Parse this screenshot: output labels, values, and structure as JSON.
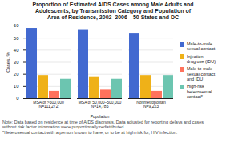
{
  "chart_data": {
    "type": "bar",
    "title": "Proportion of Estimated AIDS Cases among Male Adults and\nAdolescents, by Transmission Category and Population of\nArea of Residence, 2002–2006—50 States and DC",
    "xlabel": "Population",
    "ylabel": "Cases, %",
    "categories": [
      "MSA of >500,000\nN=111,272",
      "MSA of 50,000–500,000\nN=14,785",
      "Nonmetropolitan\nN=9,223"
    ],
    "series": [
      {
        "name": "Male-to-male\nsexual contact",
        "values": [
          58,
          57,
          54
        ]
      },
      {
        "name": "Injection\ndrug use (IDU)",
        "values": [
          19,
          18,
          19
        ]
      },
      {
        "name": "Male-to-male\nsexual contact\nand IDU",
        "values": [
          6,
          7,
          6
        ]
      },
      {
        "name": "High-risk\nheterosexual\ncontact*",
        "values": [
          16,
          16,
          19
        ]
      }
    ],
    "ylim": [
      0,
      60
    ],
    "yticks": [
      0,
      10,
      20,
      30,
      40,
      50,
      60
    ],
    "grid": true,
    "legend": "right",
    "annotations": [
      "Note: Data based on residence at time of AIDS diagnosis. Data adjusted for reporting delays and cases",
      "without risk factor information were proportionally redistributed.",
      "*Heterosexual contact with a person known to have, or to be at high risk for, HIV infection."
    ]
  }
}
